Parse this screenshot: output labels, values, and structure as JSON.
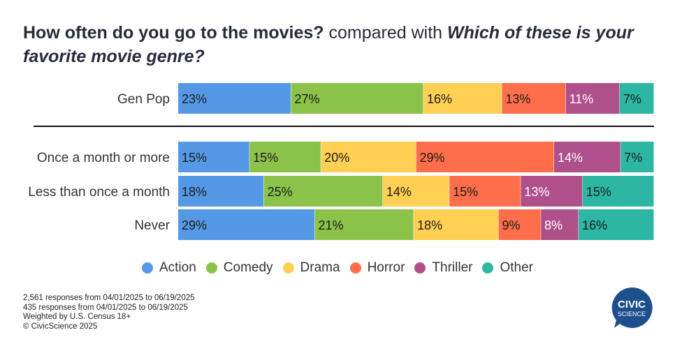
{
  "title": {
    "part1": "How often do you go to the movies?",
    "part2": " compared with ",
    "part3": "Which of these is your favorite movie genre?"
  },
  "chart_data": {
    "type": "bar",
    "orientation": "horizontal",
    "stacked": true,
    "normalized": true,
    "categories": [
      "Gen Pop",
      "Once a month or more",
      "Less than once a month",
      "Never"
    ],
    "series": [
      {
        "name": "Action",
        "color": "#5599e6",
        "values": [
          23,
          15,
          18,
          29
        ]
      },
      {
        "name": "Comedy",
        "color": "#8bc34a",
        "values": [
          27,
          15,
          25,
          21
        ]
      },
      {
        "name": "Drama",
        "color": "#ffd054",
        "values": [
          16,
          20,
          14,
          18
        ]
      },
      {
        "name": "Horror",
        "color": "#ff6e4a",
        "values": [
          13,
          29,
          15,
          9
        ]
      },
      {
        "name": "Thriller",
        "color": "#b0508a",
        "values": [
          11,
          14,
          13,
          8
        ]
      },
      {
        "name": "Other",
        "color": "#2bb7a4",
        "values": [
          7,
          7,
          15,
          16
        ]
      }
    ],
    "value_suffix": "%",
    "legend_position": "bottom",
    "grid": false
  },
  "footnotes": [
    "2,561 responses from 04/01/2025 to 06/19/2025",
    "435 responses from 04/01/2025 to 06/19/2025",
    "Weighted by U.S. Census 18+",
    "© CivicScience 2025"
  ],
  "logo": {
    "line1": "CIVIC",
    "line2": "SCIENCE",
    "color": "#1d4f8c"
  }
}
